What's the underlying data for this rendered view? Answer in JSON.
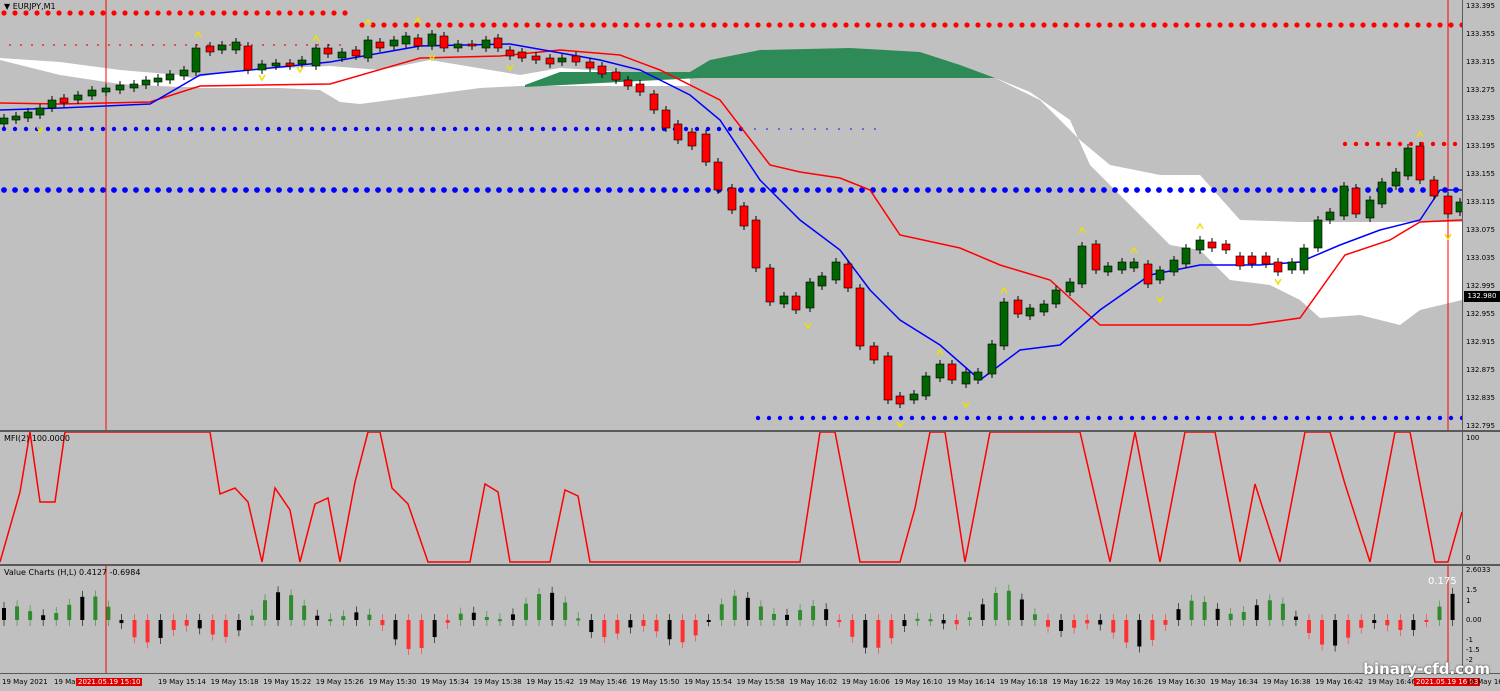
{
  "chart": {
    "symbol_title": "EURJPY,M1",
    "price_axis_ticks": [
      "133.395",
      "133.355",
      "133.315",
      "133.275",
      "133.235",
      "133.195",
      "133.155",
      "133.115",
      "133.075",
      "133.035",
      "132.995",
      "132.955",
      "132.915",
      "132.875",
      "132.835",
      "132.795"
    ],
    "current_price": "132.980",
    "colors": {
      "background": "#c0c0c0",
      "bull": "#006400",
      "bear": "#ff0000",
      "kijun": "#ff0000",
      "tenkan": "#0000ff",
      "kumo_bull": "#2e8b57",
      "kumo_bear": "#ffffff"
    }
  },
  "mfi": {
    "label": "MFI(2) 100.0000",
    "axis_ticks": [
      "100",
      "0"
    ]
  },
  "value_charts": {
    "label": "Value Charts (H,L) 0.4127 -0.6984",
    "current_value": "0.175",
    "axis_ticks": [
      "2.6033",
      "1.5",
      "1",
      "0.00",
      "-1",
      "-1.5",
      "-2"
    ]
  },
  "time_axis": {
    "labels": [
      "19 May 2021",
      "19 May",
      "2021.05.19 15:10",
      "19 May 15:14",
      "19 May 15:18",
      "19 May 15:22",
      "19 May 15:26",
      "19 May 15:30",
      "19 May 15:34",
      "19 May 15:38",
      "19 May 15:42",
      "19 May 15:46",
      "19 May 15:50",
      "19 May 15:54",
      "19 May 15:58",
      "19 May 16:02",
      "19 May 16:06",
      "19 May 16:10",
      "19 May 16:14",
      "19 May 16:18",
      "19 May 16:22",
      "19 May 16:26",
      "19 May 16:30",
      "19 May 16:34",
      "19 May 16:38",
      "19 May 16:42",
      "19 May 16:46",
      "2021.05.19 16:53",
      "19 May 16:"
    ]
  },
  "watermark": "binary-cfd.com"
}
